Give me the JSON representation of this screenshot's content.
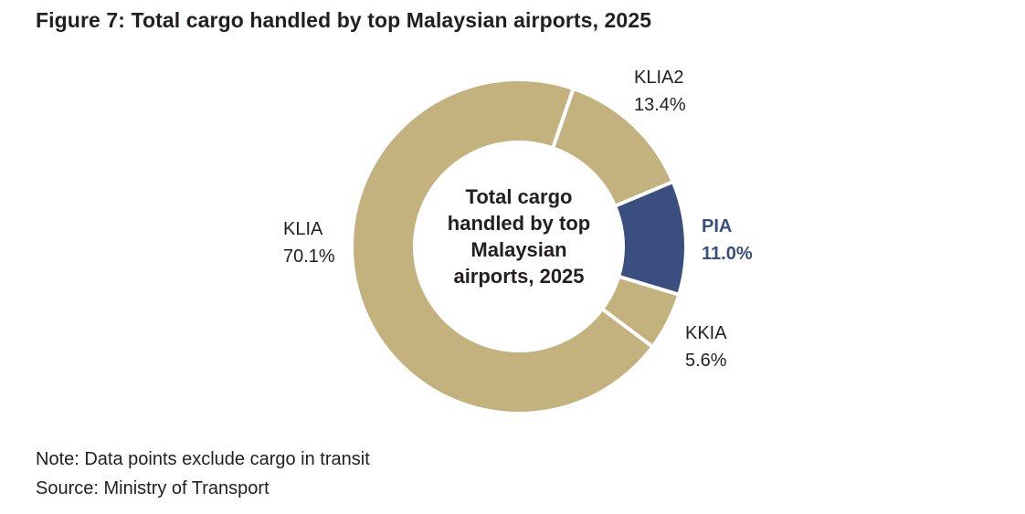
{
  "chart_data": {
    "type": "pie",
    "donut": true,
    "title": "Figure 7: Total cargo handled by top Malaysian airports, 2025",
    "center_label": [
      "Total cargo",
      "handled by top",
      "Malaysian",
      "airports, 2025"
    ],
    "unit": "%",
    "slices": [
      {
        "label": "KLIA2",
        "value": 13.4,
        "value_label": "13.4%",
        "color": "#c3b17e",
        "highlight": false
      },
      {
        "label": "PIA",
        "value": 11.0,
        "value_label": "11.0%",
        "color": "#3a4f7f",
        "highlight": true
      },
      {
        "label": "KKIA",
        "value": 5.6,
        "value_label": "5.6%",
        "color": "#c3b17e",
        "highlight": false
      },
      {
        "label": "KLIA",
        "value": 70.1,
        "value_label": "70.1%",
        "color": "#c3b17e",
        "highlight": false
      }
    ],
    "start_angle_deg": 19
  },
  "notes": {
    "note": "Note: Data points exclude cargo in transit",
    "source": "Source: Ministry of Transport"
  }
}
